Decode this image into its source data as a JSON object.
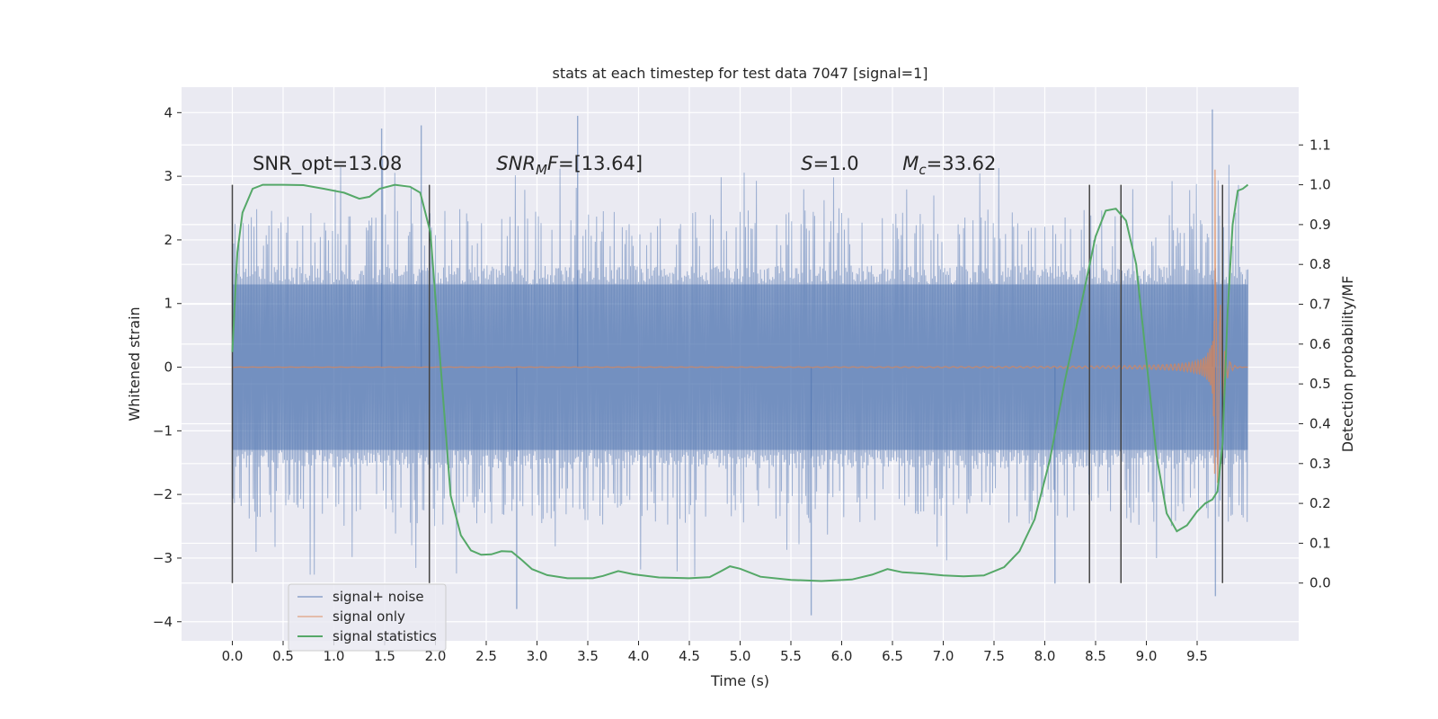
{
  "chart_data": {
    "type": "line",
    "title": "stats at each timestep for test data 7047 [signal=1]",
    "xlabel": "Time (s)",
    "ylabel": "Whitened strain",
    "y2label": "Detection probability/MF",
    "xlim": [
      -0.5,
      10.5
    ],
    "ylim": [
      -4.3,
      4.4
    ],
    "y2lim": [
      -0.145,
      1.245
    ],
    "grid": true,
    "legend_position": "lower-left",
    "x_ticks": [
      "0.0",
      "0.5",
      "1.0",
      "1.5",
      "2.0",
      "2.5",
      "3.0",
      "3.5",
      "4.0",
      "4.5",
      "5.0",
      "5.5",
      "6.0",
      "6.5",
      "7.0",
      "7.5",
      "8.0",
      "8.5",
      "9.0",
      "9.5"
    ],
    "y_ticks": [
      "4",
      "3",
      "2",
      "1",
      "0",
      "−1",
      "−2",
      "−3",
      "−4"
    ],
    "y2_ticks": [
      "1.1",
      "1.0",
      "0.9",
      "0.8",
      "0.7",
      "0.6",
      "0.5",
      "0.4",
      "0.3",
      "0.2",
      "0.1",
      "0.0"
    ],
    "annotations": [
      {
        "text": "SNR_opt=13.08",
        "x": 0.2,
        "y": 3.2
      },
      {
        "text": "SNR_MF=[13.64]",
        "x": 2.6,
        "y": 3.2
      },
      {
        "text": "S=1.0",
        "x": 5.6,
        "y": 3.2
      },
      {
        "text": "M_c=33.62",
        "x": 6.6,
        "y": 3.2
      }
    ],
    "vertical_lines_x": [
      0.0,
      1.94,
      8.44,
      8.75,
      9.75
    ],
    "series": [
      {
        "name": "signal+ noise",
        "color": "#4c72b0",
        "kind": "noise",
        "x_range": [
          0.0,
          10.0
        ],
        "typical_range": [
          -2.0,
          2.3
        ],
        "peaks": [
          [
            1.47,
            3.75
          ],
          [
            1.86,
            3.8
          ],
          [
            3.4,
            3.95
          ],
          [
            9.65,
            4.05
          ],
          [
            2.8,
            -3.8
          ],
          [
            5.7,
            -3.9
          ],
          [
            8.1,
            -3.4
          ],
          [
            9.68,
            -3.6
          ]
        ]
      },
      {
        "name": "signal only",
        "color": "#dd8452",
        "kind": "chirp",
        "merger_time": 9.68,
        "peak_amplitude": 3.5
      },
      {
        "name": "signal statistics",
        "color": "#55a868",
        "axis": "right",
        "x": [
          0.0,
          0.05,
          0.1,
          0.2,
          0.3,
          0.5,
          0.7,
          0.9,
          1.1,
          1.25,
          1.35,
          1.45,
          1.6,
          1.75,
          1.85,
          1.95,
          2.05,
          2.15,
          2.25,
          2.35,
          2.45,
          2.55,
          2.65,
          2.75,
          2.85,
          2.95,
          3.1,
          3.3,
          3.55,
          3.65,
          3.8,
          3.95,
          4.2,
          4.5,
          4.7,
          4.8,
          4.9,
          5.0,
          5.2,
          5.5,
          5.8,
          6.1,
          6.3,
          6.45,
          6.6,
          6.8,
          7.0,
          7.2,
          7.4,
          7.6,
          7.75,
          7.9,
          8.05,
          8.2,
          8.35,
          8.5,
          8.6,
          8.7,
          8.8,
          8.9,
          9.0,
          9.1,
          9.2,
          9.3,
          9.4,
          9.5,
          9.58,
          9.65,
          9.7,
          9.75,
          9.8,
          9.85,
          9.9,
          9.95,
          10.0
        ],
        "values": [
          0.58,
          0.83,
          0.93,
          0.99,
          1.0,
          1.0,
          0.999,
          0.99,
          0.98,
          0.965,
          0.97,
          0.99,
          1.0,
          0.995,
          0.98,
          0.88,
          0.55,
          0.22,
          0.12,
          0.082,
          0.071,
          0.072,
          0.08,
          0.079,
          0.058,
          0.035,
          0.02,
          0.012,
          0.012,
          0.018,
          0.03,
          0.022,
          0.014,
          0.012,
          0.015,
          0.028,
          0.042,
          0.036,
          0.016,
          0.008,
          0.005,
          0.009,
          0.021,
          0.035,
          0.027,
          0.024,
          0.019,
          0.017,
          0.019,
          0.04,
          0.08,
          0.16,
          0.31,
          0.51,
          0.69,
          0.87,
          0.935,
          0.94,
          0.91,
          0.8,
          0.56,
          0.32,
          0.175,
          0.13,
          0.145,
          0.18,
          0.2,
          0.21,
          0.23,
          0.35,
          0.68,
          0.9,
          0.985,
          0.99,
          1.0
        ]
      }
    ]
  }
}
